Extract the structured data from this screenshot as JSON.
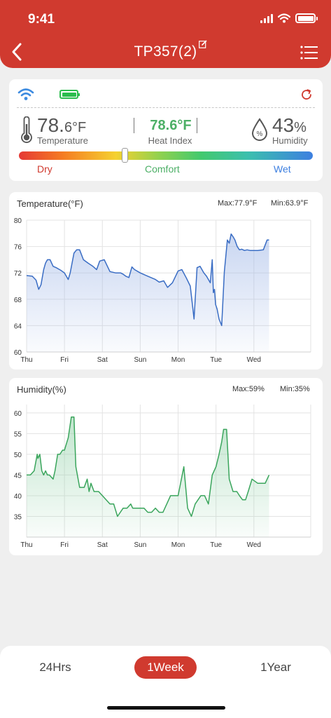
{
  "status_bar": {
    "time": "9:41"
  },
  "header": {
    "title": "TP357(2)"
  },
  "icons": {
    "back": "chevron-left-icon",
    "edit": "edit-icon",
    "menu": "menu-icon",
    "wifi": "wifi-icon",
    "battery": "battery-icon",
    "refresh": "refresh-icon",
    "thermometer": "thermometer-icon",
    "humidity": "humidity-drop-icon"
  },
  "device": {
    "temperature": {
      "value": "78.",
      "decimal": "6°F",
      "label": "Temperature"
    },
    "heat_index": {
      "value": "78.6°F",
      "label": "Heat Index"
    },
    "humidity": {
      "value": "43",
      "unit": "%",
      "label": "Humidity"
    },
    "comfort": {
      "dry": "Dry",
      "comfort": "Comfort",
      "wet": "Wet",
      "position": 0.36
    }
  },
  "colors": {
    "brand_red": "#d03a2f",
    "temperature_line": "#3a6dc4",
    "humidity_line": "#3aa55c",
    "comfort_green": "#4caf66",
    "wet_blue": "#3d7fe0"
  },
  "chart_data": [
    {
      "type": "area",
      "title": "Temperature(°F)",
      "max_label": "Max:77.9°F",
      "min_label": "Min:63.9°F",
      "categories": [
        "Thu",
        "Fri",
        "Sat",
        "Sun",
        "Mon",
        "Tue",
        "Wed"
      ],
      "yticks": [
        60,
        64,
        68,
        72,
        76,
        80
      ],
      "ylim": [
        60,
        80
      ],
      "xlim": [
        0,
        7.5
      ],
      "grid": true,
      "x": [
        0,
        0.15,
        0.25,
        0.32,
        0.38,
        0.45,
        0.5,
        0.55,
        0.62,
        0.7,
        0.78,
        0.9,
        1.0,
        1.1,
        1.15,
        1.25,
        1.32,
        1.4,
        1.5,
        1.62,
        1.75,
        1.85,
        1.93,
        2.05,
        2.2,
        2.35,
        2.48,
        2.55,
        2.62,
        2.7,
        2.78,
        2.85,
        3.0,
        3.2,
        3.4,
        3.5,
        3.62,
        3.72,
        3.85,
        4.0,
        4.1,
        4.22,
        4.32,
        4.42,
        4.5,
        4.58,
        4.68,
        4.75,
        4.85,
        4.9,
        4.93,
        4.96,
        4.99,
        5.03,
        5.08,
        5.15,
        5.22,
        5.3,
        5.35,
        5.4,
        5.45,
        5.5,
        5.56,
        5.62,
        5.68,
        5.75,
        5.82,
        5.9,
        6.0,
        6.1,
        6.25,
        6.35,
        6.4
      ],
      "series": [
        {
          "values": [
            71.6,
            71.5,
            70.9,
            69.5,
            70.2,
            72.5,
            73.5,
            74.0,
            74.0,
            73.0,
            72.8,
            72.4,
            72.0,
            71.0,
            72.0,
            75.0,
            75.5,
            75.5,
            74.0,
            73.5,
            73.0,
            72.5,
            73.8,
            74.0,
            72.2,
            72.0,
            72.0,
            71.8,
            71.5,
            71.3,
            72.9,
            72.5,
            72.0,
            71.5,
            71.0,
            70.6,
            70.8,
            69.8,
            70.5,
            72.3,
            72.5,
            71.2,
            70.0,
            65.0,
            72.8,
            73.0,
            72.0,
            71.5,
            70.5,
            74.0,
            69.0,
            69.5,
            67.2,
            66.5,
            65.0,
            64.0,
            72.2,
            77.0,
            76.5,
            77.9,
            77.5,
            77.0,
            76.0,
            75.5,
            75.6,
            75.4,
            75.5,
            75.4,
            75.4,
            75.4,
            75.5,
            77.0,
            77.0
          ]
        }
      ]
    },
    {
      "type": "area",
      "title": "Humidity(%)",
      "max_label": "Max:59%",
      "min_label": "Min:35%",
      "categories": [
        "Thu",
        "Fri",
        "Sat",
        "Sun",
        "Mon",
        "Tue",
        "Wed"
      ],
      "yticks": [
        35,
        40,
        45,
        50,
        55,
        60
      ],
      "ylim": [
        30,
        62
      ],
      "xlim": [
        0,
        7.5
      ],
      "grid": true,
      "x": [
        0,
        0.1,
        0.2,
        0.28,
        0.3,
        0.35,
        0.4,
        0.45,
        0.5,
        0.55,
        0.6,
        0.7,
        0.75,
        0.82,
        0.88,
        0.95,
        1.0,
        1.1,
        1.18,
        1.25,
        1.3,
        1.4,
        1.52,
        1.6,
        1.65,
        1.7,
        1.78,
        1.85,
        1.9,
        2.0,
        2.2,
        2.3,
        2.4,
        2.55,
        2.65,
        2.75,
        2.8,
        2.9,
        3.0,
        3.1,
        3.2,
        3.3,
        3.4,
        3.5,
        3.6,
        3.7,
        3.8,
        3.9,
        4.0,
        4.15,
        4.25,
        4.3,
        4.35,
        4.45,
        4.6,
        4.7,
        4.8,
        4.9,
        5.0,
        5.08,
        5.15,
        5.2,
        5.28,
        5.35,
        5.45,
        5.55,
        5.62,
        5.7,
        5.78,
        5.85,
        5.95,
        6.1,
        6.3,
        6.4
      ],
      "series": [
        {
          "values": [
            45,
            45,
            46,
            50,
            49,
            50,
            46,
            45,
            46,
            45,
            45,
            44,
            46,
            50,
            50,
            51,
            51,
            54,
            59,
            59,
            47,
            42,
            42,
            44,
            41,
            43,
            41,
            41,
            41,
            40,
            38,
            38,
            35,
            37,
            37,
            38,
            37,
            37,
            37,
            37,
            36,
            36,
            37,
            36,
            36,
            38,
            40,
            40,
            40,
            47,
            37,
            36,
            35,
            38,
            40,
            40,
            38,
            45,
            47,
            50,
            53,
            56,
            56,
            44,
            41,
            41,
            40,
            39,
            39,
            41,
            44,
            43,
            43,
            45
          ]
        }
      ]
    }
  ],
  "range_selector": {
    "options": [
      {
        "label": "24Hrs",
        "selected": false
      },
      {
        "label": "1Week",
        "selected": true
      },
      {
        "label": "1Year",
        "selected": false
      }
    ]
  }
}
